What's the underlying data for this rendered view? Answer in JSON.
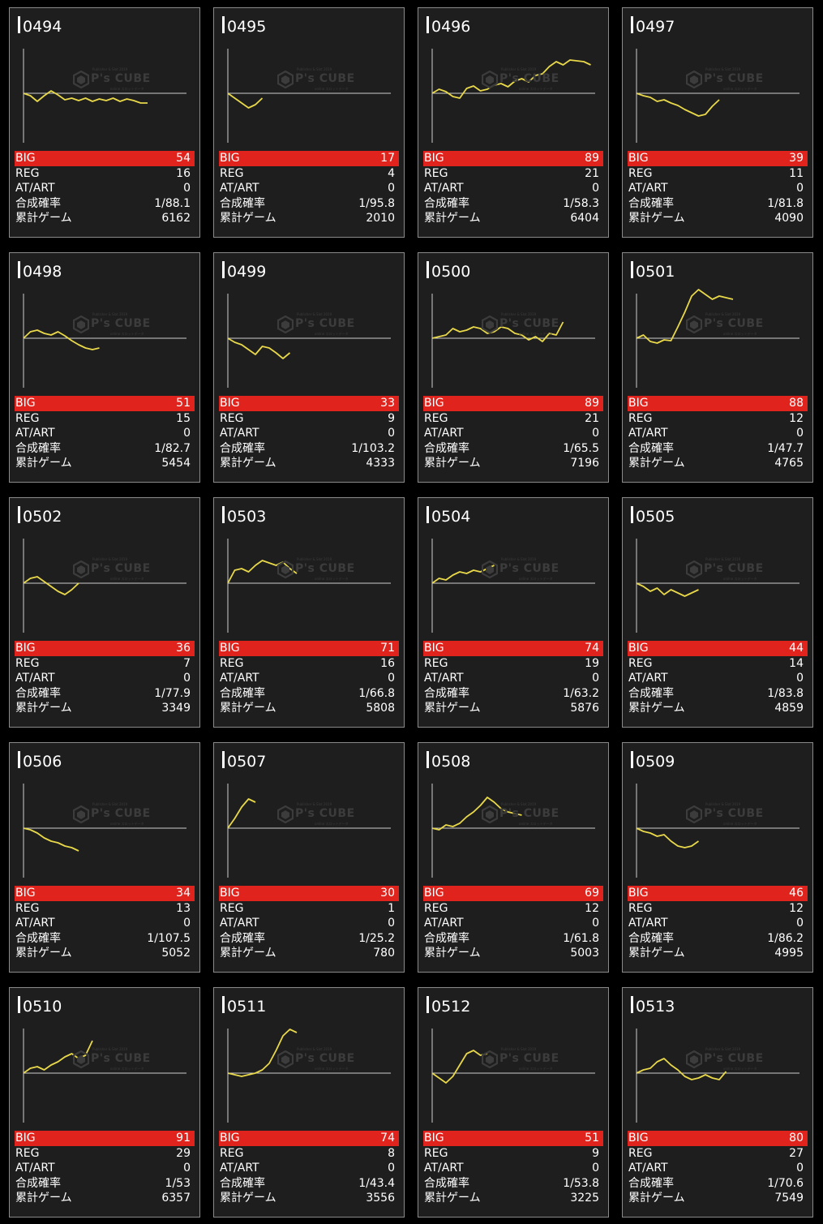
{
  "colors": {
    "background": "#000000",
    "card_background": "#1e1e1e",
    "card_border": "#8a8a8a",
    "big_row": "#e0231c",
    "graph_line": "#e8d84a",
    "axis": "#cfcfcf"
  },
  "labels": {
    "big": "BIG",
    "reg": "REG",
    "at_art": "AT/ART",
    "combined_prob": "合成確率",
    "total_games": "累計ゲーム"
  },
  "watermark": {
    "brand": "P's CUBE",
    "small_top": "Publisher & Slot 2019",
    "small_bottom": "online スロットデータ"
  },
  "machines": [
    {
      "id": "0494",
      "big": "54",
      "reg": "16",
      "at_art": "0",
      "prob": "1/88.1",
      "games": "6162",
      "graph": [
        0,
        -3,
        -10,
        -3,
        3,
        -2,
        -8,
        -6,
        -9,
        -6,
        -10,
        -7,
        -9,
        -6,
        -10,
        -7,
        -9,
        -12,
        -12
      ]
    },
    {
      "id": "0495",
      "big": "17",
      "reg": "4",
      "at_art": "0",
      "prob": "1/95.8",
      "games": "2010",
      "graph": [
        0,
        -6,
        -12,
        -18,
        -14,
        -6
      ]
    },
    {
      "id": "0496",
      "big": "89",
      "reg": "21",
      "at_art": "0",
      "prob": "1/58.3",
      "games": "6404",
      "graph": [
        0,
        5,
        2,
        -4,
        -6,
        6,
        9,
        3,
        5,
        10,
        12,
        8,
        15,
        18,
        14,
        22,
        24,
        33,
        39,
        35,
        41,
        40,
        39,
        35
      ]
    },
    {
      "id": "0497",
      "big": "39",
      "reg": "11",
      "at_art": "0",
      "prob": "1/81.8",
      "games": "4090",
      "graph": [
        0,
        -3,
        -5,
        -10,
        -8,
        -12,
        -15,
        -20,
        -24,
        -28,
        -26,
        -16,
        -8
      ]
    },
    {
      "id": "0498",
      "big": "51",
      "reg": "15",
      "at_art": "0",
      "prob": "1/82.7",
      "games": "5454",
      "graph": [
        0,
        8,
        10,
        6,
        4,
        8,
        3,
        -3,
        -8,
        -12,
        -14,
        -12
      ]
    },
    {
      "id": "0499",
      "big": "33",
      "reg": "9",
      "at_art": "0",
      "prob": "1/103.2",
      "games": "4333",
      "graph": [
        0,
        -5,
        -8,
        -14,
        -20,
        -10,
        -12,
        -18,
        -25,
        -18
      ]
    },
    {
      "id": "0500",
      "big": "89",
      "reg": "21",
      "at_art": "0",
      "prob": "1/65.5",
      "games": "7196",
      "graph": [
        0,
        2,
        4,
        12,
        8,
        10,
        14,
        12,
        6,
        8,
        14,
        12,
        6,
        4,
        -2,
        2,
        -4,
        6,
        4,
        20
      ]
    },
    {
      "id": "0501",
      "big": "88",
      "reg": "12",
      "at_art": "0",
      "prob": "1/47.7",
      "games": "4765",
      "graph": [
        0,
        4,
        -4,
        -6,
        -2,
        -3,
        14,
        32,
        52,
        60,
        54,
        48,
        52,
        50,
        48
      ]
    },
    {
      "id": "0502",
      "big": "36",
      "reg": "7",
      "at_art": "0",
      "prob": "1/77.9",
      "games": "3349",
      "graph": [
        0,
        6,
        8,
        2,
        -4,
        -10,
        -14,
        -8,
        0
      ]
    },
    {
      "id": "0503",
      "big": "71",
      "reg": "16",
      "at_art": "0",
      "prob": "1/66.8",
      "games": "5808",
      "graph": [
        0,
        16,
        18,
        14,
        22,
        28,
        25,
        22,
        26,
        18,
        12
      ]
    },
    {
      "id": "0504",
      "big": "74",
      "reg": "19",
      "at_art": "0",
      "prob": "1/63.2",
      "games": "5876",
      "graph": [
        0,
        6,
        4,
        10,
        14,
        12,
        16,
        14,
        18,
        22
      ]
    },
    {
      "id": "0505",
      "big": "44",
      "reg": "14",
      "at_art": "0",
      "prob": "1/83.8",
      "games": "4859",
      "graph": [
        0,
        -4,
        -10,
        -6,
        -14,
        -8,
        -12,
        -16,
        -12,
        -8
      ]
    },
    {
      "id": "0506",
      "big": "34",
      "reg": "13",
      "at_art": "0",
      "prob": "1/107.5",
      "games": "5052",
      "graph": [
        0,
        -2,
        -6,
        -12,
        -16,
        -18,
        -22,
        -24,
        -28
      ]
    },
    {
      "id": "0507",
      "big": "30",
      "reg": "1",
      "at_art": "0",
      "prob": "1/25.2",
      "games": "780",
      "graph": [
        0,
        12,
        26,
        36,
        32
      ]
    },
    {
      "id": "0508",
      "big": "69",
      "reg": "12",
      "at_art": "0",
      "prob": "1/61.8",
      "games": "5003",
      "graph": [
        0,
        -2,
        4,
        2,
        6,
        14,
        20,
        28,
        38,
        32,
        24,
        20,
        18,
        16
      ]
    },
    {
      "id": "0509",
      "big": "46",
      "reg": "12",
      "at_art": "0",
      "prob": "1/86.2",
      "games": "4995",
      "graph": [
        0,
        -4,
        -6,
        -10,
        -8,
        -16,
        -22,
        -24,
        -22,
        -16
      ]
    },
    {
      "id": "0510",
      "big": "91",
      "reg": "29",
      "at_art": "0",
      "prob": "1/53",
      "games": "6357",
      "graph": [
        0,
        6,
        8,
        4,
        10,
        14,
        20,
        24,
        18,
        22,
        40
      ]
    },
    {
      "id": "0511",
      "big": "74",
      "reg": "8",
      "at_art": "0",
      "prob": "1/43.4",
      "games": "3556",
      "graph": [
        0,
        -2,
        -4,
        -2,
        0,
        4,
        12,
        28,
        46,
        54,
        50
      ]
    },
    {
      "id": "0512",
      "big": "51",
      "reg": "9",
      "at_art": "0",
      "prob": "1/53.8",
      "games": "3225",
      "graph": [
        0,
        -6,
        -12,
        -4,
        10,
        24,
        28,
        22,
        24
      ]
    },
    {
      "id": "0513",
      "big": "80",
      "reg": "27",
      "at_art": "0",
      "prob": "1/70.6",
      "games": "7549",
      "graph": [
        0,
        4,
        6,
        14,
        18,
        10,
        4,
        -4,
        -8,
        -6,
        -2,
        -6,
        -8,
        2
      ]
    }
  ]
}
